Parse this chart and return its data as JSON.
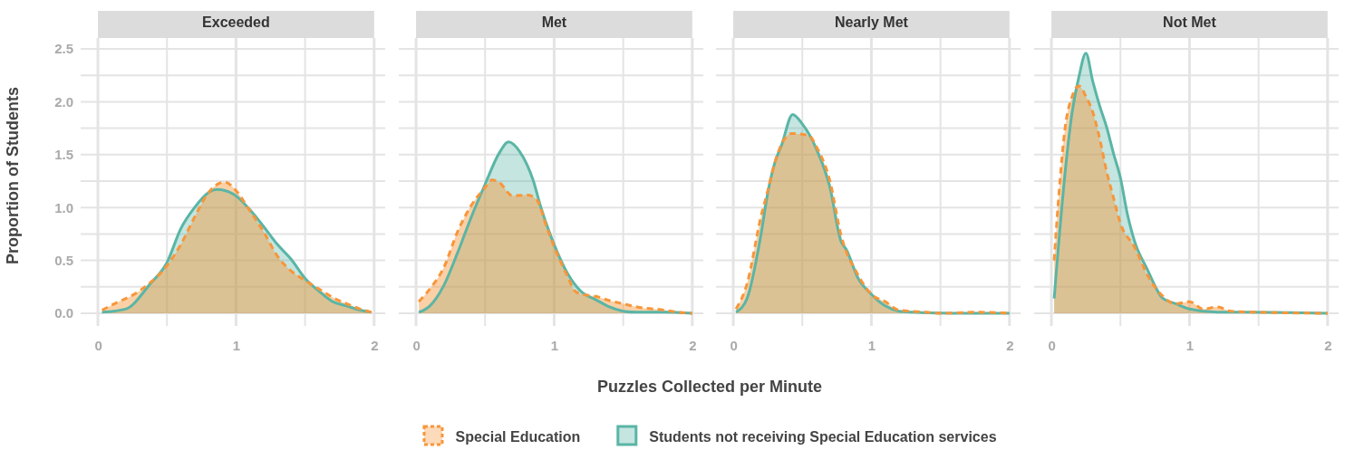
{
  "chart_data": [
    {
      "type": "area",
      "title": "Exceeded",
      "ylabel": "Proportion of Students",
      "xlim": [
        -0.125,
        2.08
      ],
      "ylim": [
        0,
        2.5
      ],
      "xticks": [
        0,
        1,
        2
      ],
      "yticks": [
        {
          "value": 0,
          "label": "0.0"
        },
        0.5,
        {
          "value": 1,
          "label": "1.0"
        },
        1.5,
        {
          "value": 2,
          "label": "2.0"
        },
        2.5
      ],
      "grid": true,
      "legend": "bottom",
      "series": [
        {
          "name": "Special Education",
          "color": "#f7963a",
          "line_style": "dashed",
          "x": [
            0.03,
            0.15,
            0.25,
            0.35,
            0.5,
            0.6,
            0.7,
            0.8,
            0.88,
            0.92,
            1,
            1.1,
            1.2,
            1.3,
            1.4,
            1.5,
            1.6,
            1.7,
            1.8,
            1.9,
            1.98
          ],
          "values": [
            0.03,
            0.11,
            0.17,
            0.26,
            0.45,
            0.65,
            0.91,
            1.14,
            1.23,
            1.24,
            1.16,
            0.97,
            0.77,
            0.54,
            0.4,
            0.31,
            0.23,
            0.15,
            0.09,
            0.04,
            0.01
          ]
        },
        {
          "name": "Students not receiving Special Education services",
          "color": "#5ab5a5",
          "line_style": "solid",
          "x": [
            0.03,
            0.2,
            0.38,
            0.5,
            0.6,
            0.7,
            0.8,
            0.86,
            0.92,
            1,
            1.1,
            1.2,
            1.3,
            1.4,
            1.5,
            1.6,
            1.7,
            1.8,
            1.9,
            1.98
          ],
          "values": [
            0.01,
            0.04,
            0.28,
            0.48,
            0.8,
            1,
            1.14,
            1.17,
            1.16,
            1.11,
            0.98,
            0.82,
            0.65,
            0.51,
            0.33,
            0.21,
            0.11,
            0.07,
            0.03,
            0.01
          ]
        }
      ]
    },
    {
      "type": "area",
      "title": "Met",
      "xlabel": "Puzzles Collected per Minute",
      "xlim": [
        -0.125,
        2.08
      ],
      "ylim": [
        0,
        2.5
      ],
      "xticks": [
        0,
        1,
        2
      ],
      "yticks": [
        0,
        0.5,
        1,
        1.5,
        2,
        2.5
      ],
      "grid": true,
      "tick_labels": "x",
      "series": [
        {
          "color": "#f7963a",
          "line_style": "dashed",
          "x": [
            0.02,
            0.1,
            0.2,
            0.3,
            0.4,
            0.5,
            0.55,
            0.6,
            0.7,
            0.8,
            0.87,
            0.95,
            1,
            1.1,
            1.15,
            1.2,
            1.3,
            1.4,
            1.5,
            1.6,
            1.8,
            1.9,
            2
          ],
          "values": [
            0.11,
            0.23,
            0.43,
            0.77,
            1.02,
            1.19,
            1.26,
            1.24,
            1.11,
            1.12,
            1.08,
            0.8,
            0.63,
            0.34,
            0.21,
            0.18,
            0.16,
            0.12,
            0.09,
            0.06,
            0.03,
            0.01,
            0
          ]
        },
        {
          "color": "#5ab5a5",
          "line_style": "solid",
          "x": [
            0.02,
            0.1,
            0.2,
            0.3,
            0.4,
            0.5,
            0.6,
            0.67,
            0.75,
            0.85,
            0.9,
            1,
            1.1,
            1.2,
            1.3,
            1.4,
            1.5,
            1.6,
            1.8,
            2
          ],
          "values": [
            0.01,
            0.07,
            0.26,
            0.57,
            0.91,
            1.22,
            1.51,
            1.62,
            1.53,
            1.25,
            1.02,
            0.65,
            0.37,
            0.2,
            0.13,
            0.06,
            0.02,
            0.01,
            0.01,
            0
          ]
        }
      ]
    },
    {
      "type": "area",
      "title": "Nearly Met",
      "xlim": [
        -0.125,
        2.08
      ],
      "ylim": [
        0,
        2.5
      ],
      "xticks": [
        0,
        1,
        2
      ],
      "yticks": [
        0,
        0.5,
        1,
        1.5,
        2,
        2.5
      ],
      "grid": true,
      "tick_labels": "x",
      "series": [
        {
          "color": "#f7963a",
          "line_style": "dashed",
          "x": [
            0.02,
            0.1,
            0.2,
            0.25,
            0.3,
            0.35,
            0.42,
            0.55,
            0.6,
            0.7,
            0.78,
            0.9,
            1,
            1.1,
            1.2,
            1.4,
            1.5,
            1.75,
            2
          ],
          "values": [
            0.04,
            0.28,
            0.91,
            1.16,
            1.42,
            1.6,
            1.7,
            1.68,
            1.58,
            1.25,
            0.74,
            0.37,
            0.18,
            0.11,
            0.03,
            0.01,
            0,
            0.01,
            0
          ]
        },
        {
          "color": "#5ab5a5",
          "line_style": "solid",
          "x": [
            0.02,
            0.1,
            0.2,
            0.25,
            0.3,
            0.35,
            0.43,
            0.5,
            0.6,
            0.7,
            0.78,
            0.82,
            0.9,
            1,
            1.1,
            1.2,
            1.3,
            1.6,
            2
          ],
          "values": [
            0.01,
            0.14,
            0.74,
            1.14,
            1.42,
            1.59,
            1.88,
            1.79,
            1.56,
            1.19,
            0.68,
            0.6,
            0.34,
            0.18,
            0.07,
            0.02,
            0.01,
            0,
            0
          ]
        }
      ]
    },
    {
      "type": "area",
      "title": "Not Met",
      "xlim": [
        -0.125,
        2.08
      ],
      "ylim": [
        0,
        2.5
      ],
      "xticks": [
        0,
        1,
        2
      ],
      "yticks": [
        0,
        0.5,
        1,
        1.5,
        2,
        2.5
      ],
      "grid": true,
      "tick_labels": "x",
      "series": [
        {
          "color": "#f7963a",
          "line_style": "dashed",
          "x": [
            0.02,
            0.05,
            0.1,
            0.15,
            0.2,
            0.25,
            0.3,
            0.35,
            0.4,
            0.45,
            0.5,
            0.6,
            0.7,
            0.8,
            0.9,
            1,
            1.1,
            1.2,
            1.3,
            1.5,
            2
          ],
          "values": [
            0.5,
            1.05,
            1.76,
            2.05,
            2.15,
            2.05,
            1.9,
            1.65,
            1.34,
            1.09,
            0.85,
            0.63,
            0.35,
            0.17,
            0.09,
            0.11,
            0.04,
            0.06,
            0.02,
            0.01,
            0
          ]
        },
        {
          "color": "#5ab5a5",
          "line_style": "solid",
          "x": [
            0.02,
            0.05,
            0.1,
            0.15,
            0.2,
            0.25,
            0.3,
            0.35,
            0.4,
            0.45,
            0.5,
            0.55,
            0.6,
            0.7,
            0.75,
            0.8,
            0.9,
            1,
            1.2,
            1.4,
            2
          ],
          "values": [
            0.14,
            0.62,
            1.34,
            1.9,
            2.24,
            2.46,
            2.19,
            1.96,
            1.76,
            1.51,
            1.28,
            0.94,
            0.69,
            0.4,
            0.26,
            0.15,
            0.09,
            0.04,
            0.01,
            0.01,
            0
          ]
        }
      ]
    }
  ]
}
